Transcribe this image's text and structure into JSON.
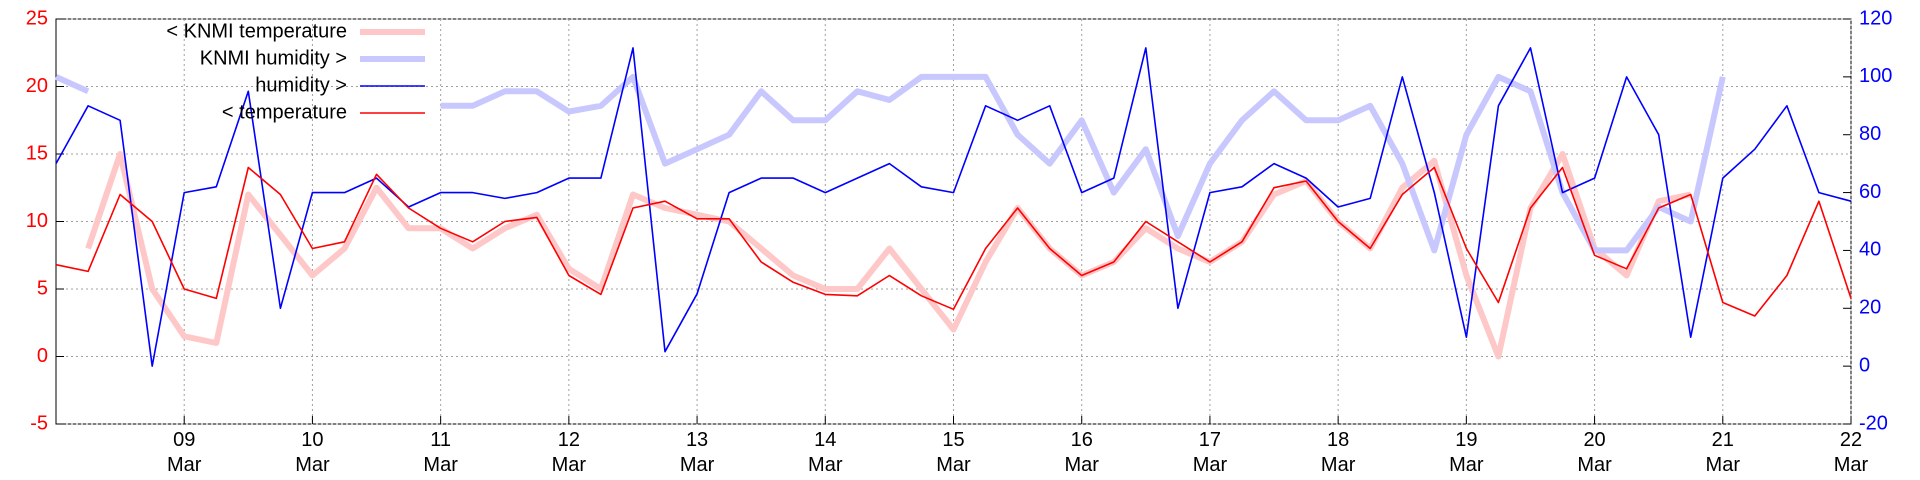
{
  "chart_data": {
    "type": "line",
    "x": [
      8.0,
      8.25,
      8.5,
      8.75,
      9.0,
      9.25,
      9.5,
      9.75,
      10.0,
      10.25,
      10.5,
      10.75,
      11.0,
      11.25,
      11.5,
      11.75,
      12.0,
      12.25,
      12.5,
      12.75,
      13.0,
      13.25,
      13.5,
      13.75,
      14.0,
      14.25,
      14.5,
      14.75,
      15.0,
      15.25,
      15.5,
      15.75,
      16.0,
      16.25,
      16.5,
      16.75,
      17.0,
      17.25,
      17.5,
      17.75,
      18.0,
      18.25,
      18.5,
      18.75,
      19.0,
      19.25,
      19.5,
      19.75,
      20.0,
      20.25,
      20.5,
      20.75,
      21.0,
      21.25,
      21.5,
      21.75,
      22.0
    ],
    "xlim": [
      8,
      22
    ],
    "xticks": [
      {
        "value": 9,
        "label": "09\nMar"
      },
      {
        "value": 10,
        "label": "10\nMar"
      },
      {
        "value": 11,
        "label": "11\nMar"
      },
      {
        "value": 12,
        "label": "12\nMar"
      },
      {
        "value": 13,
        "label": "13\nMar"
      },
      {
        "value": 14,
        "label": "14\nMar"
      },
      {
        "value": 15,
        "label": "15\nMar"
      },
      {
        "value": 16,
        "label": "16\nMar"
      },
      {
        "value": 17,
        "label": "17\nMar"
      },
      {
        "value": 18,
        "label": "18\nMar"
      },
      {
        "value": 19,
        "label": "19\nMar"
      },
      {
        "value": 20,
        "label": "20\nMar"
      },
      {
        "value": 21,
        "label": "21\nMar"
      },
      {
        "value": 22,
        "label": "22\nMar"
      }
    ],
    "ylim": [
      -5,
      25
    ],
    "yticks": [
      -5,
      0,
      5,
      10,
      15,
      20,
      25
    ],
    "y2lim": [
      -20,
      120
    ],
    "y2ticks": [
      -20,
      0,
      20,
      40,
      60,
      80,
      100,
      120
    ],
    "grid": true,
    "legend": "upper left",
    "series": [
      {
        "name": "< KNMI temperature",
        "color": "#ffc8c8",
        "axis": "y",
        "values": [
          null,
          8,
          15,
          5,
          1.5,
          1,
          12,
          9,
          6,
          8,
          12.5,
          9.5,
          9.5,
          8,
          9.5,
          10.5,
          6.5,
          5,
          12,
          11,
          10.5,
          10,
          8,
          6,
          5,
          5,
          8,
          5,
          2,
          7,
          11,
          8,
          6,
          7,
          9.5,
          8,
          7,
          8.5,
          12,
          13,
          10,
          8,
          12.5,
          14.5,
          6,
          0,
          11,
          15,
          8,
          6,
          11.5,
          12,
          null,
          null,
          null,
          null,
          null
        ]
      },
      {
        "name": "KNMI humidity >",
        "color": "#c8c8ff",
        "axis": "y2",
        "values": [
          100,
          95,
          null,
          null,
          null,
          null,
          null,
          null,
          null,
          null,
          null,
          null,
          90,
          90,
          95,
          95,
          88,
          90,
          100,
          70,
          75,
          80,
          95,
          85,
          85,
          95,
          92,
          100,
          100,
          100,
          80,
          70,
          85,
          60,
          75,
          45,
          70,
          85,
          95,
          85,
          85,
          90,
          70,
          40,
          80,
          100,
          95,
          60,
          40,
          40,
          55,
          50,
          100,
          null,
          null,
          null,
          null
        ]
      },
      {
        "name": "humidity >",
        "color": "#0000ff",
        "axis": "y2",
        "values": [
          70,
          90,
          85,
          0,
          60,
          62,
          95,
          20,
          60,
          60,
          65,
          55,
          60,
          60,
          58,
          60,
          65,
          65,
          110,
          5,
          25,
          60,
          65,
          65,
          60,
          65,
          70,
          62,
          60,
          90,
          85,
          90,
          60,
          65,
          110,
          20,
          60,
          62,
          70,
          65,
          55,
          58,
          100,
          60,
          10,
          90,
          110,
          60,
          65,
          100,
          80,
          10,
          65,
          75,
          90,
          60,
          57
        ]
      },
      {
        "name": "< temperature",
        "color": "#ff0000",
        "axis": "y",
        "values": [
          6.8,
          6.3,
          12,
          10,
          5,
          4.3,
          14,
          12,
          8,
          8.5,
          13.5,
          11,
          9.5,
          8.5,
          10,
          10.3,
          6,
          4.6,
          11,
          11.5,
          10.2,
          10.2,
          7,
          5.5,
          4.6,
          4.5,
          6,
          4.5,
          3.5,
          8,
          11,
          8,
          6,
          7,
          10,
          8.5,
          7,
          8.5,
          12.5,
          13,
          10,
          8,
          12,
          14,
          8,
          4,
          11,
          14,
          7.5,
          6.5,
          11,
          12,
          4,
          3,
          6,
          11.5,
          4.3
        ]
      }
    ]
  }
}
